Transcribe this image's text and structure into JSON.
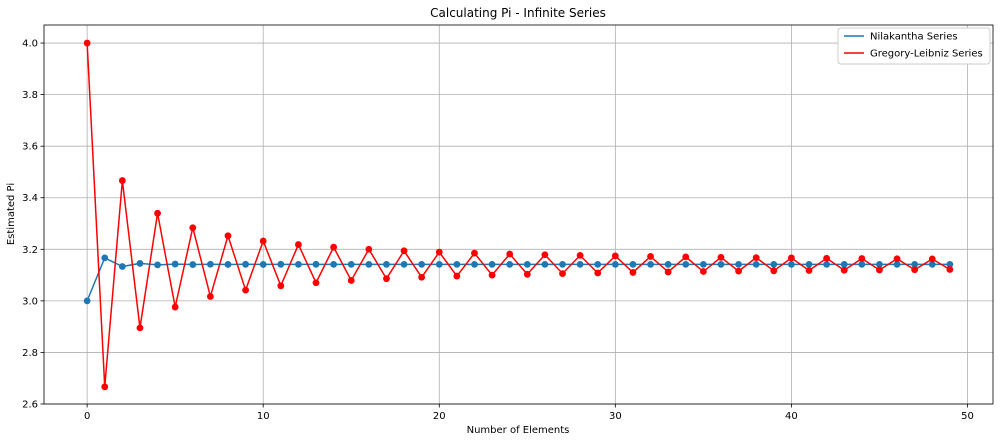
{
  "chart_data": {
    "type": "line",
    "title": "Calculating Pi - Infinite Series",
    "xlabel": "Number of Elements",
    "ylabel": "Estimated Pi",
    "xlim": [
      -2.45,
      51.45
    ],
    "ylim": [
      2.6,
      4.07
    ],
    "xticks": [
      0,
      10,
      20,
      30,
      40,
      50
    ],
    "yticks": [
      2.6,
      2.8,
      3.0,
      3.2,
      3.4,
      3.6,
      3.8,
      4.0
    ],
    "xtick_labels": [
      "0",
      "10",
      "20",
      "30",
      "40",
      "50"
    ],
    "ytick_labels": [
      "2.6",
      "2.8",
      "3.0",
      "3.2",
      "3.4",
      "3.6",
      "3.8",
      "4.0"
    ],
    "grid": true,
    "legend_position": "top-right",
    "x": [
      0,
      1,
      2,
      3,
      4,
      5,
      6,
      7,
      8,
      9,
      10,
      11,
      12,
      13,
      14,
      15,
      16,
      17,
      18,
      19,
      20,
      21,
      22,
      23,
      24,
      25,
      26,
      27,
      28,
      29,
      30,
      31,
      32,
      33,
      34,
      35,
      36,
      37,
      38,
      39,
      40,
      41,
      42,
      43,
      44,
      45,
      46,
      47,
      48,
      49
    ],
    "series": [
      {
        "name": "Nilakantha Series",
        "color": "#1f77b4",
        "values": [
          3.0,
          3.1667,
          3.1333,
          3.1452,
          3.1397,
          3.1427,
          3.1409,
          3.142,
          3.1413,
          3.1418,
          3.1414,
          3.1417,
          3.1415,
          3.1417,
          3.1415,
          3.1416,
          3.1416,
          3.1416,
          3.1416,
          3.1416,
          3.1416,
          3.1416,
          3.1416,
          3.1416,
          3.1416,
          3.1416,
          3.1416,
          3.1416,
          3.1416,
          3.1416,
          3.1416,
          3.1416,
          3.1416,
          3.1416,
          3.1416,
          3.1416,
          3.1416,
          3.1416,
          3.1416,
          3.1416,
          3.1416,
          3.1416,
          3.1416,
          3.1416,
          3.1416,
          3.1416,
          3.1416,
          3.1416,
          3.1416,
          3.1416
        ]
      },
      {
        "name": "Gregory-Leibniz Series",
        "color": "#ff0000",
        "values": [
          4.0,
          2.6667,
          3.4667,
          2.8952,
          3.3397,
          2.976,
          3.2837,
          3.0171,
          3.2524,
          3.0418,
          3.2323,
          3.0584,
          3.2184,
          3.0703,
          3.2082,
          3.0792,
          3.2003,
          3.0861,
          3.1941,
          3.0916,
          3.1892,
          3.0962,
          3.1852,
          3.0999,
          3.1818,
          3.1031,
          3.1789,
          3.1058,
          3.1764,
          3.1082,
          3.1742,
          3.1103,
          3.1723,
          3.1122,
          3.1706,
          3.1138,
          3.169,
          3.1153,
          3.1677,
          3.1166,
          3.1665,
          3.1178,
          3.1654,
          3.1189,
          3.1644,
          3.1199,
          3.1635,
          3.1208,
          3.1626,
          3.1217
        ]
      }
    ]
  }
}
